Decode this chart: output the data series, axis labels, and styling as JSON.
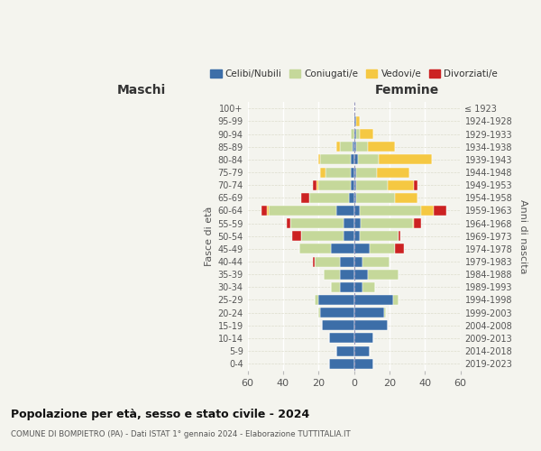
{
  "age_groups": [
    "0-4",
    "5-9",
    "10-14",
    "15-19",
    "20-24",
    "25-29",
    "30-34",
    "35-39",
    "40-44",
    "45-49",
    "50-54",
    "55-59",
    "60-64",
    "65-69",
    "70-74",
    "75-79",
    "80-84",
    "85-89",
    "90-94",
    "95-99",
    "100+"
  ],
  "birth_years": [
    "2019-2023",
    "2014-2018",
    "2009-2013",
    "2004-2008",
    "1999-2003",
    "1994-1998",
    "1989-1993",
    "1984-1988",
    "1979-1983",
    "1974-1978",
    "1969-1973",
    "1964-1968",
    "1959-1963",
    "1954-1958",
    "1949-1953",
    "1944-1948",
    "1939-1943",
    "1934-1938",
    "1929-1933",
    "1924-1928",
    "≤ 1923"
  ],
  "maschi": {
    "celibi": [
      14,
      10,
      14,
      18,
      19,
      20,
      8,
      8,
      8,
      13,
      6,
      6,
      10,
      3,
      2,
      2,
      2,
      1,
      0,
      0,
      0
    ],
    "coniugati": [
      0,
      0,
      0,
      0,
      1,
      2,
      5,
      9,
      14,
      18,
      24,
      30,
      38,
      22,
      18,
      14,
      17,
      7,
      2,
      0,
      0
    ],
    "vedovi": [
      0,
      0,
      0,
      0,
      0,
      0,
      0,
      0,
      0,
      0,
      0,
      0,
      1,
      0,
      1,
      3,
      1,
      2,
      0,
      0,
      0
    ],
    "divorziati": [
      0,
      0,
      0,
      0,
      0,
      0,
      0,
      0,
      1,
      0,
      5,
      2,
      3,
      5,
      2,
      0,
      0,
      0,
      0,
      0,
      0
    ]
  },
  "femmine": {
    "nubili": [
      11,
      9,
      11,
      19,
      17,
      22,
      5,
      8,
      5,
      9,
      3,
      4,
      3,
      1,
      1,
      1,
      2,
      1,
      1,
      1,
      0
    ],
    "coniugate": [
      0,
      0,
      0,
      0,
      1,
      3,
      7,
      17,
      15,
      14,
      22,
      29,
      35,
      22,
      18,
      12,
      12,
      7,
      2,
      0,
      0
    ],
    "vedove": [
      0,
      0,
      0,
      0,
      0,
      0,
      0,
      0,
      0,
      0,
      0,
      1,
      7,
      13,
      15,
      18,
      30,
      15,
      8,
      2,
      0
    ],
    "divorziate": [
      0,
      0,
      0,
      0,
      0,
      0,
      0,
      0,
      0,
      5,
      1,
      4,
      7,
      0,
      2,
      0,
      0,
      0,
      0,
      0,
      0
    ]
  },
  "colors": {
    "celibi": "#3c6ea8",
    "coniugati": "#c5d89a",
    "vedovi": "#f5c842",
    "divorziati": "#cc2222"
  },
  "title": "Popolazione per età, sesso e stato civile - 2024",
  "subtitle": "COMUNE DI BOMPIETRO (PA) - Dati ISTAT 1° gennaio 2024 - Elaborazione TUTTITALIA.IT",
  "xlabel_left": "Maschi",
  "xlabel_right": "Femmine",
  "ylabel_left": "Fasce di età",
  "ylabel_right": "Anni di nascita",
  "xlim": 60,
  "bg_color": "#f4f4ee",
  "legend_labels": [
    "Celibi/Nubili",
    "Coniugati/e",
    "Vedovi/e",
    "Divorziati/e"
  ]
}
